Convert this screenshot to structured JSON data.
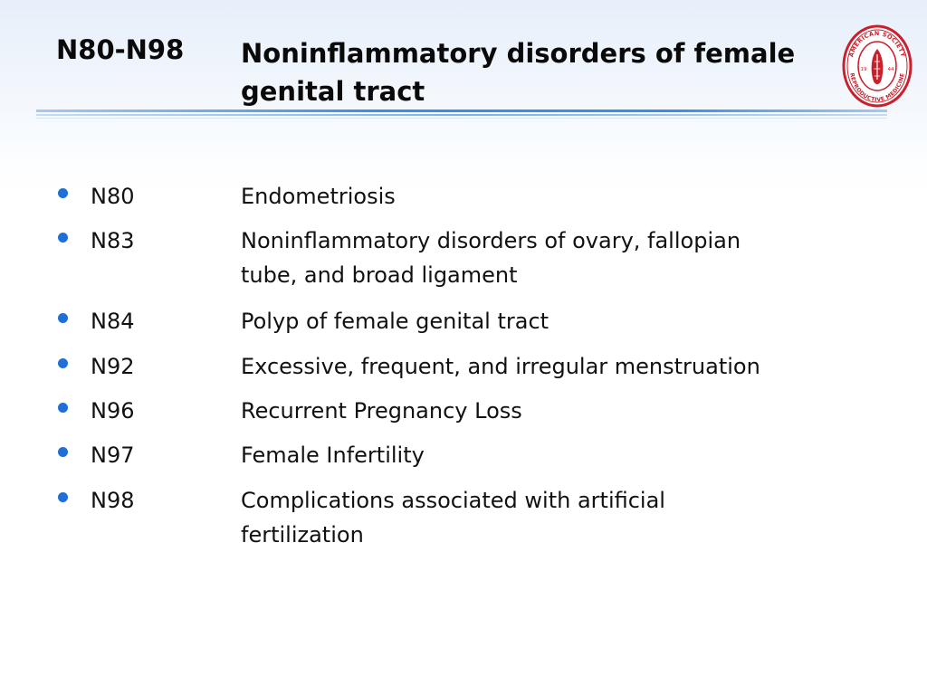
{
  "header": {
    "code": "N80-N98",
    "title_line1": "Noninflammatory disorders of female",
    "title_line2": "genital tract",
    "logo_icon": "asrm-seal-icon",
    "logo_text": "AMERICAN SOCIETY REPRODUCTIVE MEDICINE",
    "logo_year_left": "19",
    "logo_year_right": "44"
  },
  "colors": {
    "bullet": "#1f6fd8",
    "rule": "#3a8ee6",
    "logo_red": "#c8202c",
    "text": "#111111"
  },
  "items": [
    {
      "code": "N80",
      "lines": [
        "Endometriosis"
      ]
    },
    {
      "code": "N83",
      "lines": [
        "Noninflammatory disorders of ovary, fallopian",
        "tube, and broad ligament"
      ]
    },
    {
      "code": "N84",
      "lines": [
        "Polyp of female genital tract"
      ]
    },
    {
      "code": "N92",
      "lines": [
        "Excessive, frequent, and irregular menstruation"
      ]
    },
    {
      "code": "N96",
      "lines": [
        "Recurrent Pregnancy Loss"
      ]
    },
    {
      "code": "N97",
      "lines": [
        "Female Infertility"
      ]
    },
    {
      "code": "N98",
      "lines": [
        "Complications associated with artificial",
        "fertilization"
      ]
    }
  ]
}
